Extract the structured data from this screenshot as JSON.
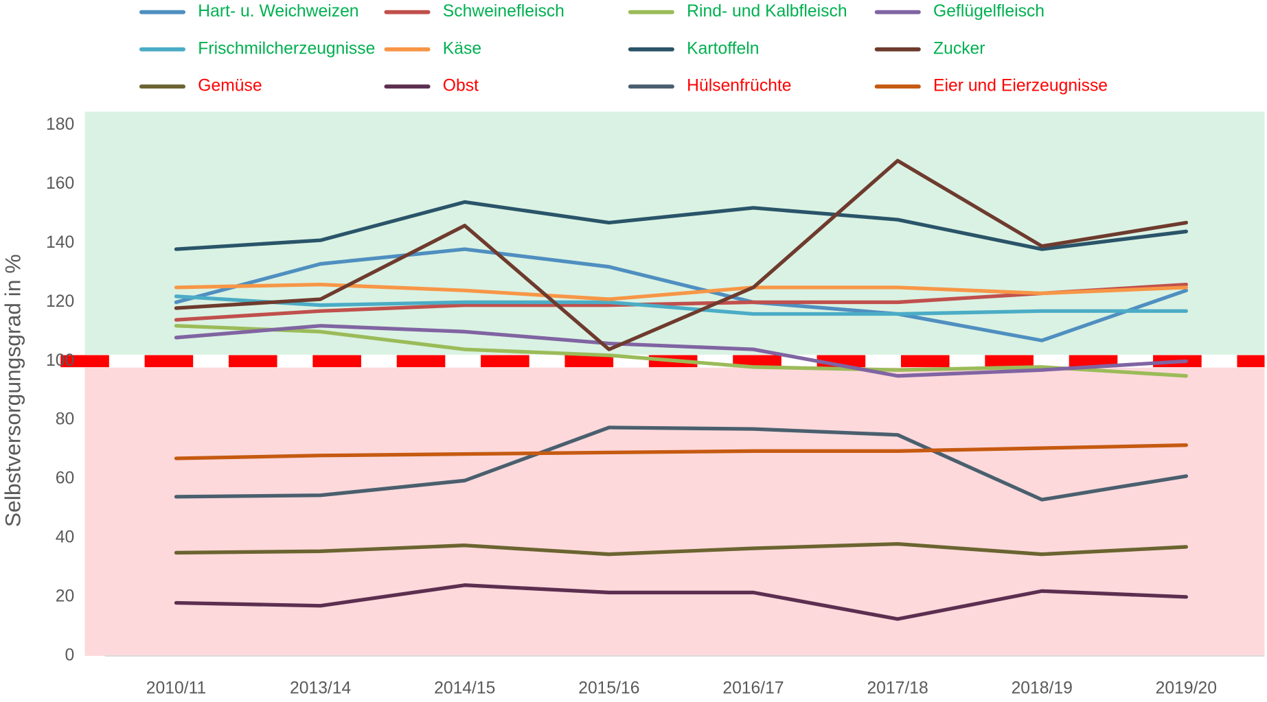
{
  "chart_data": {
    "type": "line",
    "y_axis_label": "Selbstversorgungsgrad in %",
    "categories": [
      "2010/11",
      "2013/14",
      "2014/15",
      "2015/16",
      "2016/17",
      "2017/18",
      "2018/19",
      "2019/20"
    ],
    "ylim": [
      0,
      180
    ],
    "yticks": [
      0,
      20,
      40,
      60,
      80,
      100,
      120,
      140,
      160,
      180
    ],
    "reference_line": 100,
    "reference_color": "#ff0000",
    "band_above_color": "#daf2e3",
    "band_below_color": "#fdd9db",
    "series": [
      {
        "name": "Hart- u. Weichweizen",
        "color": "#4f8fc0",
        "label_color": "#00b050",
        "values": [
          120,
          133,
          138,
          132,
          120,
          116,
          107,
          124
        ]
      },
      {
        "name": "Schweinefleisch",
        "color": "#c0504d",
        "label_color": "#00b050",
        "values": [
          114,
          117,
          119,
          119,
          120,
          120,
          123,
          126
        ]
      },
      {
        "name": "Rind- und Kalbfleisch",
        "color": "#9bbb59",
        "label_color": "#00b050",
        "values": [
          112,
          110,
          104,
          102,
          98,
          97,
          98,
          95
        ]
      },
      {
        "name": "Geflügelfleisch",
        "color": "#8064a2",
        "label_color": "#00b050",
        "values": [
          108,
          112,
          110,
          106,
          104,
          95,
          97,
          100
        ]
      },
      {
        "name": "Frischmilcherzeugnisse",
        "color": "#4bacc6",
        "label_color": "#00b050",
        "values": [
          122,
          119,
          120,
          120,
          116,
          116,
          117,
          117
        ]
      },
      {
        "name": "Käse",
        "color": "#f79646",
        "label_color": "#00b050",
        "values": [
          125,
          126,
          124,
          121,
          125,
          125,
          123,
          125
        ]
      },
      {
        "name": "Kartoffeln",
        "color": "#2a5469",
        "label_color": "#00b050",
        "values": [
          138,
          141,
          154,
          147,
          152,
          148,
          138,
          144
        ]
      },
      {
        "name": "Zucker",
        "color": "#6e3b2e",
        "label_color": "#00b050",
        "values": [
          118,
          121,
          146,
          104,
          125,
          168,
          139,
          147
        ]
      },
      {
        "name": "Gemüse",
        "color": "#6b6430",
        "label_color": "#ff0000",
        "values": [
          35,
          35.5,
          37.5,
          34.5,
          36.5,
          38,
          34.5,
          37
        ]
      },
      {
        "name": "Obst",
        "color": "#5c2f50",
        "label_color": "#ff0000",
        "values": [
          18,
          17,
          24,
          21.5,
          21.5,
          12.5,
          22,
          20
        ]
      },
      {
        "name": "Hülsenfrüchte",
        "color": "#4a5f6e",
        "label_color": "#ff0000",
        "values": [
          54,
          54.5,
          59.5,
          77.5,
          77,
          75,
          53,
          61
        ]
      },
      {
        "name": "Eier und Eierzeugnisse",
        "color": "#c55a11",
        "label_color": "#ff0000",
        "values": [
          67,
          68,
          68.5,
          69,
          69.5,
          69.5,
          70.5,
          71.5
        ]
      }
    ]
  }
}
